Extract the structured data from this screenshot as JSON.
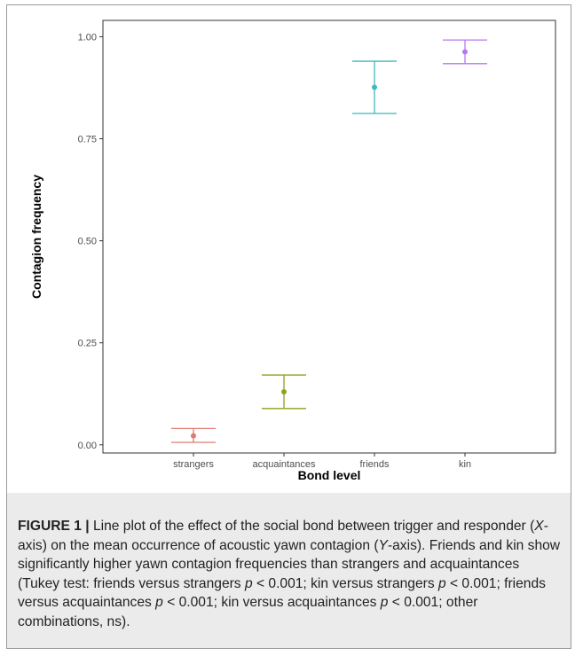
{
  "chart_data": {
    "type": "scatter",
    "title": "",
    "xlabel": "Bond level",
    "ylabel": "Contagion frequency",
    "ylim": [
      -0.02,
      1.04
    ],
    "yticks": [
      0.0,
      0.25,
      0.5,
      0.75,
      1.0
    ],
    "ytick_labels": [
      "0.00",
      "0.25",
      "0.50",
      "0.75",
      "1.00"
    ],
    "grid": false,
    "legend": "none",
    "categories": [
      "strangers",
      "acquaintances",
      "friends",
      "kin"
    ],
    "values": [
      0.022,
      0.13,
      0.876,
      0.963
    ],
    "error_low": [
      0.006,
      0.089,
      0.812,
      0.934
    ],
    "error_high": [
      0.04,
      0.171,
      0.94,
      0.992
    ],
    "colors": [
      "#e07b70",
      "#8aa51d",
      "#3fb9bd",
      "#b778ed"
    ]
  },
  "caption": {
    "label": "FIGURE 1 |",
    "segments": [
      {
        "t": " Line plot of the effect of the social bond between trigger and responder ("
      },
      {
        "t": "X",
        "i": true
      },
      {
        "t": "-axis) on the mean occurrence of acoustic yawn contagion ("
      },
      {
        "t": "Y",
        "i": true
      },
      {
        "t": "-axis). Friends and kin show significantly higher yawn contagion frequencies than strangers and acquaintances (Tukey test: friends versus strangers "
      },
      {
        "t": "p",
        "i": true
      },
      {
        "t": " < 0.001; kin versus strangers "
      },
      {
        "t": "p",
        "i": true
      },
      {
        "t": " < 0.001; friends versus acquaintances "
      },
      {
        "t": "p",
        "i": true
      },
      {
        "t": " < 0.001; kin versus acquaintances "
      },
      {
        "t": "p",
        "i": true
      },
      {
        "t": " < 0.001; other combinations, ns)."
      }
    ]
  }
}
